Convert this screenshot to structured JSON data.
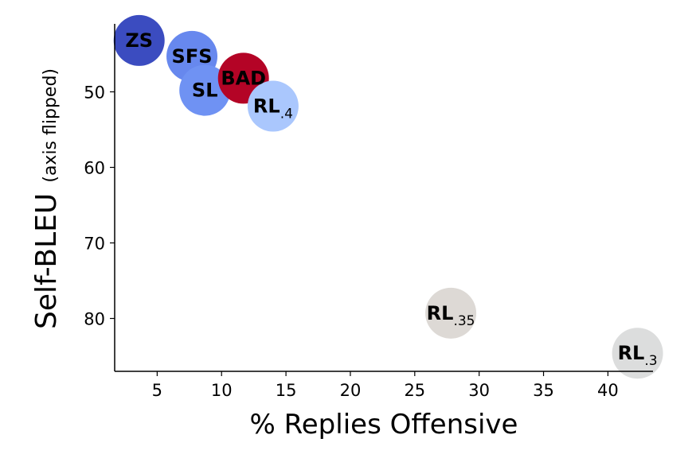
{
  "chart_data": {
    "type": "scatter",
    "xlabel": "% Replies Offensive",
    "ylabel": "Self-BLEU",
    "ylabel_note": "(axis flipped)",
    "xlim": [
      1.7,
      43.5
    ],
    "ylim": [
      41,
      87
    ],
    "y_inverted": true,
    "grid": false,
    "xticks": [
      5,
      10,
      15,
      20,
      25,
      30,
      35,
      40
    ],
    "yticks": [
      50,
      60,
      70,
      80
    ],
    "points": [
      {
        "name": "ZS",
        "sub": "",
        "x": 3.6,
        "y": 43.2,
        "color": "#3b4cc0"
      },
      {
        "name": "SFS",
        "sub": "",
        "x": 7.7,
        "y": 45.3,
        "color": "#6788ee"
      },
      {
        "name": "SL",
        "sub": "",
        "x": 8.7,
        "y": 49.8,
        "color": "#6f92f3"
      },
      {
        "name": "BAD",
        "sub": "",
        "x": 11.7,
        "y": 48.2,
        "color": "#b40426"
      },
      {
        "name": "RL",
        "sub": ".4",
        "x": 14.0,
        "y": 51.9,
        "color": "#aac7fd"
      },
      {
        "name": "RL",
        "sub": ".35",
        "x": 27.8,
        "y": 79.3,
        "color": "#ddd9d5"
      },
      {
        "name": "RL",
        "sub": ".3",
        "x": 42.3,
        "y": 84.6,
        "color": "#dcdddd"
      }
    ]
  }
}
